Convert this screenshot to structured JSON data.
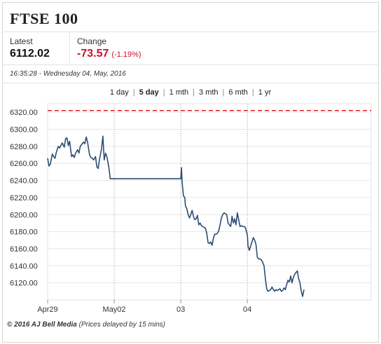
{
  "header": {
    "title": "FTSE 100",
    "latest_label": "Latest",
    "latest_value": "6112.02",
    "change_label": "Change",
    "change_value": "-73.57",
    "change_pct": "(-1.19%)",
    "timestamp": "16:35:28 - Wednesday 04, May, 2016"
  },
  "tabs": [
    {
      "label": "1 day",
      "active": false
    },
    {
      "label": "5 day",
      "active": true
    },
    {
      "label": "1 mth",
      "active": false
    },
    {
      "label": "3 mth",
      "active": false
    },
    {
      "label": "6 mth",
      "active": false
    },
    {
      "label": "1 yr",
      "active": false
    }
  ],
  "footer": {
    "brand": "© 2016 AJ Bell Media",
    "note": "(Prices delayed by 15 mins)"
  },
  "colors": {
    "line": "#2c4e74",
    "reference": "#e02020",
    "negative": "#c8102e",
    "grid": "#e6e6e6"
  },
  "chart_data": {
    "type": "line",
    "title": "",
    "xlabel": "",
    "ylabel": "",
    "ylim": [
      6100,
      6330
    ],
    "y_ticks": [
      "6320.00",
      "6300.00",
      "6280.00",
      "6260.00",
      "6240.00",
      "6220.00",
      "6200.00",
      "6180.00",
      "6160.00",
      "6140.00",
      "6120.00"
    ],
    "y_tick_values": [
      6320,
      6300,
      6280,
      6260,
      6240,
      6220,
      6200,
      6180,
      6160,
      6140,
      6120
    ],
    "x_ticks": [
      "Apr29",
      "May02",
      "03",
      "04"
    ],
    "xlim": [
      0,
      4.86
    ],
    "x_tick_values": [
      0,
      1,
      2,
      3
    ],
    "day_separators": [
      1,
      2,
      3
    ],
    "reference_line": 6322,
    "grid": "horizontal",
    "series": [
      {
        "values": [
          [
            0.0,
            6266
          ],
          [
            0.02,
            6257
          ],
          [
            0.04,
            6259
          ],
          [
            0.07,
            6271
          ],
          [
            0.09,
            6268
          ],
          [
            0.11,
            6266
          ],
          [
            0.13,
            6273
          ],
          [
            0.16,
            6280
          ],
          [
            0.18,
            6278
          ],
          [
            0.2,
            6281
          ],
          [
            0.22,
            6284
          ],
          [
            0.25,
            6279
          ],
          [
            0.27,
            6289
          ],
          [
            0.29,
            6290
          ],
          [
            0.31,
            6281
          ],
          [
            0.33,
            6286
          ],
          [
            0.36,
            6268
          ],
          [
            0.38,
            6270
          ],
          [
            0.4,
            6267
          ],
          [
            0.42,
            6272
          ],
          [
            0.45,
            6276
          ],
          [
            0.47,
            6272
          ],
          [
            0.49,
            6280
          ],
          [
            0.51,
            6282
          ],
          [
            0.54,
            6285
          ],
          [
            0.56,
            6283
          ],
          [
            0.58,
            6291
          ],
          [
            0.6,
            6285
          ],
          [
            0.63,
            6270
          ],
          [
            0.65,
            6267
          ],
          [
            0.67,
            6266
          ],
          [
            0.69,
            6264
          ],
          [
            0.72,
            6268
          ],
          [
            0.74,
            6256
          ],
          [
            0.76,
            6254
          ],
          [
            0.78,
            6265
          ],
          [
            0.81,
            6277
          ],
          [
            0.83,
            6292
          ],
          [
            0.85,
            6264
          ],
          [
            0.87,
            6272
          ],
          [
            0.89,
            6268
          ],
          [
            0.92,
            6255
          ],
          [
            0.94,
            6242
          ],
          [
            1.0,
            6242
          ],
          [
            2.0,
            6242
          ],
          [
            2.01,
            6255
          ],
          [
            2.02,
            6238
          ],
          [
            2.04,
            6222
          ],
          [
            2.06,
            6220
          ],
          [
            2.07,
            6210
          ],
          [
            2.09,
            6207
          ],
          [
            2.11,
            6200
          ],
          [
            2.13,
            6196
          ],
          [
            2.15,
            6200
          ],
          [
            2.17,
            6205
          ],
          [
            2.19,
            6198
          ],
          [
            2.21,
            6194
          ],
          [
            2.23,
            6195
          ],
          [
            2.25,
            6199
          ],
          [
            2.27,
            6188
          ],
          [
            2.29,
            6190
          ],
          [
            2.31,
            6187
          ],
          [
            2.33,
            6186
          ],
          [
            2.35,
            6185
          ],
          [
            2.37,
            6184
          ],
          [
            2.39,
            6178
          ],
          [
            2.41,
            6167
          ],
          [
            2.43,
            6166
          ],
          [
            2.45,
            6168
          ],
          [
            2.47,
            6164
          ],
          [
            2.49,
            6172
          ],
          [
            2.51,
            6177
          ],
          [
            2.53,
            6177
          ],
          [
            2.55,
            6178
          ],
          [
            2.57,
            6181
          ],
          [
            2.59,
            6188
          ],
          [
            2.61,
            6196
          ],
          [
            2.63,
            6200
          ],
          [
            2.65,
            6202
          ],
          [
            2.67,
            6201
          ],
          [
            2.69,
            6200
          ],
          [
            2.71,
            6190
          ],
          [
            2.73,
            6188
          ],
          [
            2.75,
            6186
          ],
          [
            2.77,
            6198
          ],
          [
            2.79,
            6190
          ],
          [
            2.81,
            6195
          ],
          [
            2.83,
            6188
          ],
          [
            2.85,
            6202
          ],
          [
            2.87,
            6194
          ],
          [
            2.89,
            6186
          ],
          [
            2.91,
            6187
          ],
          [
            2.93,
            6186
          ],
          [
            2.95,
            6186
          ],
          [
            2.97,
            6185
          ],
          [
            3.0,
            6176
          ],
          [
            3.01,
            6163
          ],
          [
            3.03,
            6158
          ],
          [
            3.05,
            6163
          ],
          [
            3.07,
            6168
          ],
          [
            3.09,
            6173
          ],
          [
            3.11,
            6170
          ],
          [
            3.13,
            6165
          ],
          [
            3.15,
            6150
          ],
          [
            3.17,
            6148
          ],
          [
            3.19,
            6148
          ],
          [
            3.21,
            6147
          ],
          [
            3.23,
            6144
          ],
          [
            3.25,
            6140
          ],
          [
            3.27,
            6125
          ],
          [
            3.29,
            6113
          ],
          [
            3.31,
            6110
          ],
          [
            3.33,
            6111
          ],
          [
            3.35,
            6112
          ],
          [
            3.37,
            6115
          ],
          [
            3.39,
            6112
          ],
          [
            3.41,
            6110
          ],
          [
            3.43,
            6112
          ],
          [
            3.45,
            6111
          ],
          [
            3.47,
            6112
          ],
          [
            3.49,
            6113
          ],
          [
            3.51,
            6110
          ],
          [
            3.53,
            6111
          ],
          [
            3.55,
            6114
          ],
          [
            3.57,
            6112
          ],
          [
            3.59,
            6118
          ],
          [
            3.61,
            6123
          ],
          [
            3.63,
            6121
          ],
          [
            3.65,
            6128
          ],
          [
            3.67,
            6120
          ],
          [
            3.69,
            6126
          ],
          [
            3.71,
            6130
          ],
          [
            3.73,
            6132
          ],
          [
            3.75,
            6134
          ],
          [
            3.77,
            6125
          ],
          [
            3.79,
            6120
          ],
          [
            3.81,
            6110
          ],
          [
            3.83,
            6104
          ],
          [
            3.85,
            6112
          ]
        ]
      }
    ]
  }
}
